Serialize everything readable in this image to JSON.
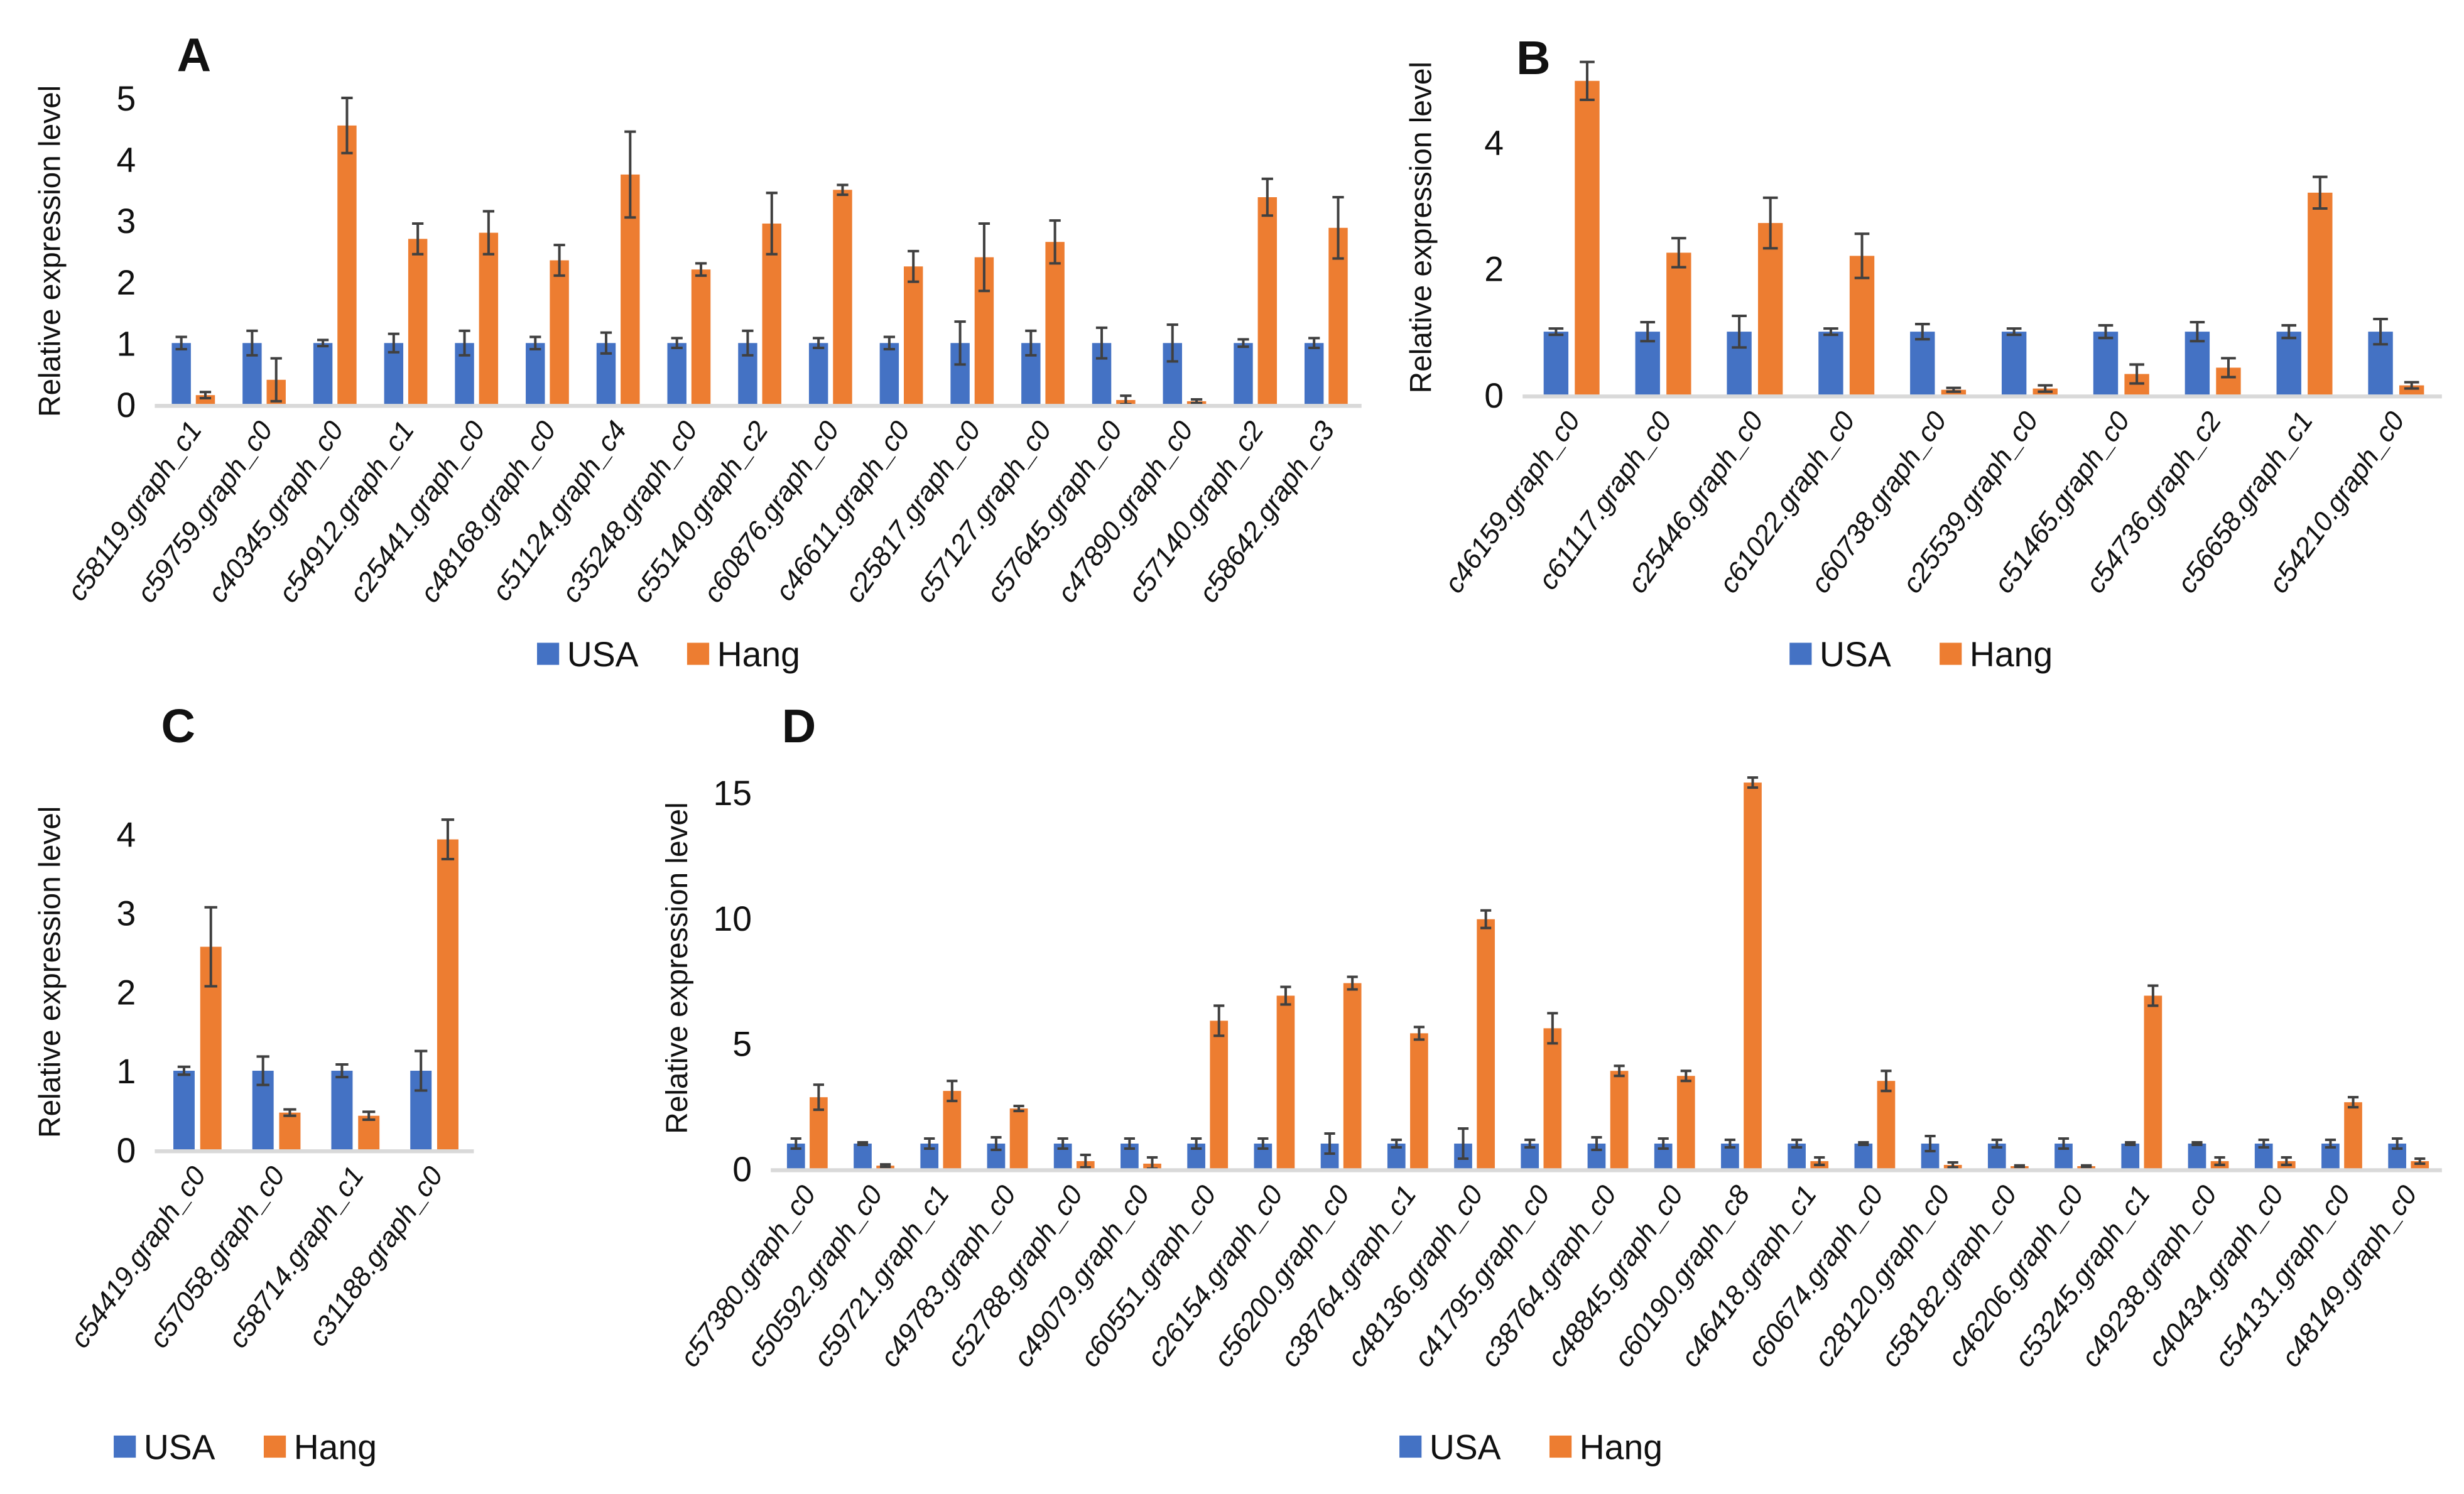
{
  "colors": {
    "USA": "#4472C4",
    "Hang": "#ED7D31",
    "error_bar": "#404040",
    "axis": "#D9D9D9"
  },
  "legend": [
    "USA",
    "Hang"
  ],
  "chart_data": [
    {
      "panel": "A",
      "type": "bar",
      "ylabel": "Relative expression level",
      "ylim": [
        0,
        5
      ],
      "yticks": [
        "0",
        "1",
        "2",
        "3",
        "4",
        "5"
      ],
      "legend_position": "bottom",
      "grid": false,
      "categories": [
        "c58119.graph_c1",
        "c59759.graph_c0",
        "c40345.graph_c0",
        "c54912.graph_c1",
        "c25441.graph_c0",
        "c48168.graph_c0",
        "c51124.graph_c4",
        "c35248.graph_c0",
        "c55140.graph_c2",
        "c60876.graph_c0",
        "c46611.graph_c0",
        "c25817.graph_c0",
        "c57127.graph_c0",
        "c57645.graph_c0",
        "c47890.graph_c0",
        "c57140.graph_c2",
        "c58642.graph_c3"
      ],
      "series": [
        {
          "name": "USA",
          "values": [
            1,
            1,
            1,
            1,
            1,
            1,
            1,
            1,
            1,
            1,
            1,
            1,
            1,
            1,
            1,
            1,
            1
          ],
          "errors": [
            0.1,
            0.2,
            0.05,
            0.15,
            0.2,
            0.1,
            0.17,
            0.08,
            0.2,
            0.08,
            0.1,
            0.35,
            0.2,
            0.25,
            0.3,
            0.06,
            0.08
          ]
        },
        {
          "name": "Hang",
          "values": [
            0.15,
            0.4,
            4.55,
            2.7,
            2.8,
            2.35,
            3.75,
            2.2,
            2.95,
            3.5,
            2.25,
            2.4,
            2.65,
            0.07,
            0.05,
            3.38,
            2.88
          ],
          "errors": [
            0.05,
            0.35,
            0.45,
            0.25,
            0.35,
            0.25,
            0.7,
            0.1,
            0.5,
            0.08,
            0.25,
            0.55,
            0.35,
            0.07,
            0.03,
            0.3,
            0.5
          ]
        }
      ]
    },
    {
      "panel": "B",
      "type": "bar",
      "ylabel": "Relative expression level",
      "ylim": [
        0,
        5.3
      ],
      "yticks": [
        "0",
        "2",
        "4"
      ],
      "legend_position": "bottom",
      "grid": false,
      "categories": [
        "c46159.graph_c0",
        "c61117.graph_c0",
        "c25446.graph_c0",
        "c61022.graph_c0",
        "c60738.graph_c0",
        "c25539.graph_c0",
        "c51465.graph_c0",
        "c54736.graph_c2",
        "c56658.graph_c1",
        "c54210.graph_c0"
      ],
      "series": [
        {
          "name": "USA",
          "values": [
            1,
            1,
            1,
            1,
            1,
            1,
            1,
            1,
            1,
            1
          ],
          "errors": [
            0.05,
            0.15,
            0.25,
            0.05,
            0.12,
            0.05,
            0.1,
            0.15,
            0.1,
            0.2
          ]
        },
        {
          "name": "Hang",
          "values": [
            4.97,
            2.25,
            2.72,
            2.2,
            0.08,
            0.1,
            0.33,
            0.43,
            3.2,
            0.15
          ],
          "errors": [
            0.3,
            0.23,
            0.4,
            0.35,
            0.03,
            0.05,
            0.15,
            0.15,
            0.25,
            0.05
          ]
        }
      ]
    },
    {
      "panel": "C",
      "type": "bar",
      "ylabel": "Relative expression level",
      "ylim": [
        0,
        4.5
      ],
      "yticks": [
        "0",
        "1",
        "2",
        "3",
        "4"
      ],
      "legend_position": "bottom",
      "grid": false,
      "categories": [
        "c54419.graph_c0",
        "c57058.graph_c0",
        "c58714.graph_c1",
        "c31188.graph_c0"
      ],
      "series": [
        {
          "name": "USA",
          "values": [
            1,
            1,
            1,
            1
          ],
          "errors": [
            0.05,
            0.18,
            0.08,
            0.25
          ]
        },
        {
          "name": "Hang",
          "values": [
            2.57,
            0.47,
            0.43,
            3.93
          ],
          "errors": [
            0.5,
            0.04,
            0.05,
            0.25
          ]
        }
      ]
    },
    {
      "panel": "D",
      "type": "bar",
      "ylabel": "Relative expression level",
      "ylim": [
        0,
        16
      ],
      "yticks": [
        "0",
        "5",
        "10",
        "15"
      ],
      "legend_position": "bottom",
      "grid": false,
      "categories": [
        "c57380.graph_c0",
        "c50592.graph_c0",
        "c59721.graph_c1",
        "c49783.graph_c0",
        "c52788.graph_c0",
        "c49079.graph_c0",
        "c60551.graph_c0",
        "c26154.graph_c0",
        "c56200.graph_c0",
        "c38764.graph_c1",
        "c48136.graph_c0",
        "c41795.graph_c0",
        "c38764.graph_c0",
        "c48845.graph_c0",
        "c60190.graph_c8",
        "c46418.graph_c1",
        "c60674.graph_c0",
        "c28120.graph_c0",
        "c58182.graph_c0",
        "c46206.graph_c0",
        "c53245.graph_c1",
        "c49238.graph_c0",
        "c40434.graph_c0",
        "c54131.graph_c0",
        "c48149.graph_c0"
      ],
      "series": [
        {
          "name": "USA",
          "values": [
            1,
            1,
            1,
            1,
            1,
            1,
            1,
            1,
            1,
            1,
            1,
            1,
            1,
            1,
            1,
            1,
            1,
            1,
            1,
            1,
            1,
            1,
            1,
            1,
            1
          ],
          "errors": [
            0.2,
            0.05,
            0.2,
            0.25,
            0.2,
            0.2,
            0.2,
            0.2,
            0.4,
            0.15,
            0.6,
            0.15,
            0.25,
            0.2,
            0.15,
            0.15,
            0.05,
            0.3,
            0.15,
            0.2,
            0.05,
            0.05,
            0.15,
            0.15,
            0.2
          ]
        },
        {
          "name": "Hang",
          "values": [
            2.85,
            0.12,
            3.1,
            2.4,
            0.3,
            0.2,
            5.9,
            6.9,
            7.4,
            5.4,
            9.95,
            5.6,
            3.9,
            3.7,
            15.4,
            0.3,
            3.5,
            0.15,
            0.1,
            0.1,
            6.9,
            0.3,
            0.3,
            2.65,
            0.3
          ],
          "errors": [
            0.5,
            0.05,
            0.4,
            0.1,
            0.25,
            0.25,
            0.6,
            0.35,
            0.25,
            0.25,
            0.35,
            0.6,
            0.2,
            0.2,
            0.2,
            0.15,
            0.4,
            0.1,
            0.03,
            0.03,
            0.4,
            0.15,
            0.15,
            0.2,
            0.1
          ]
        }
      ]
    }
  ]
}
